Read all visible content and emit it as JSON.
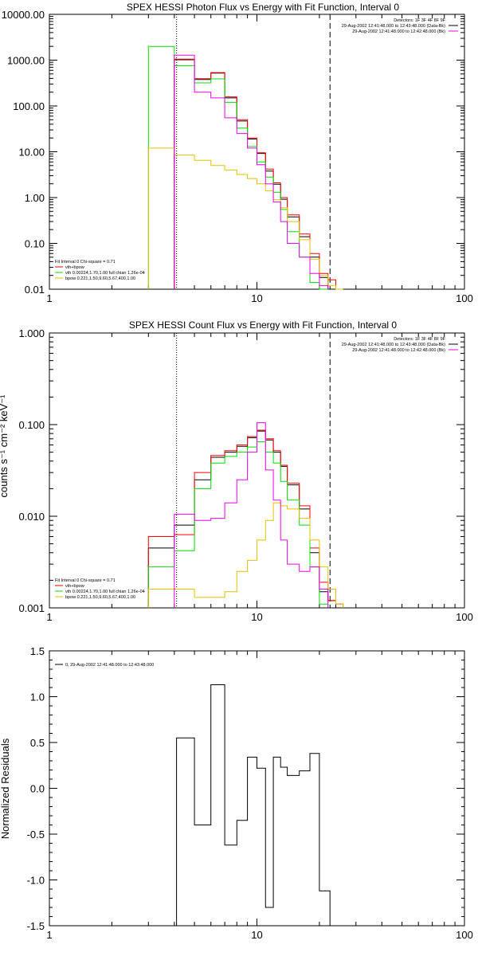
{
  "chart_data": [
    {
      "type": "line",
      "title": "SPEX HESSI Photon Flux vs Energy with Fit Function, Interval 0",
      "xlabel": "",
      "ylabel": "",
      "xscale": "log",
      "yscale": "log",
      "xlim": [
        1,
        100
      ],
      "ylim": [
        0.01,
        10000
      ],
      "x_ticks": [
        {
          "v": 1,
          "label": "1"
        },
        {
          "v": 10,
          "label": "10"
        },
        {
          "v": 100,
          "label": "100"
        }
      ],
      "y_ticks": [
        {
          "v": 0.01,
          "label": "0.01"
        },
        {
          "v": 0.1,
          "label": "0.10"
        },
        {
          "v": 1,
          "label": "1.00"
        },
        {
          "v": 10,
          "label": "10.00"
        },
        {
          "v": 100,
          "label": "100.00"
        },
        {
          "v": 1000,
          "label": "1000.00"
        },
        {
          "v": 10000,
          "label": "10000.00"
        }
      ],
      "vlines": [
        {
          "x": 4.1,
          "style": "dotted"
        },
        {
          "x": 22.5,
          "style": "dashed"
        }
      ],
      "info_lines": [
        "Detectors: 1F 3F 4F 8F 9F",
        "29-Aug-2002 12:41:48.000 to 12:43:48.000 (Data-Bk)",
        "29-Aug-2002 12:41:48.000 to 12:42:48.000 (Bk)"
      ],
      "legend_lines": [
        "Fit Interval  0    Chi-square = 0.71",
        "vth+bpow",
        "vth 0.00224,1.70,1.00  full chian 1.26e-04",
        "bpow 0.221,1.50,9.60,5.67,400,1.00"
      ],
      "edges": [
        3,
        4,
        5,
        6,
        7,
        8,
        9,
        10,
        11,
        12,
        13,
        14,
        16,
        18,
        20,
        22,
        24,
        26
      ],
      "series": [
        {
          "name": "",
          "color": "#000000",
          "edge_start": 1,
          "values": [
            1020,
            380,
            520,
            150,
            47,
            19,
            9.2,
            3.8,
            1.95,
            0.92,
            0.38,
            0.14,
            0.05,
            0.018,
            0.009
          ]
        },
        {
          "name": "vth+bpow",
          "color": "#ff0000",
          "edge_start": 1,
          "values": [
            1050,
            395,
            535,
            158,
            50,
            20,
            9.5,
            4.2,
            2.1,
            1.0,
            0.42,
            0.16,
            0.06,
            0.022,
            0.016
          ]
        },
        {
          "name": "vth 0.00224,1.70,1.00  full chian 1.26e-04",
          "color": "#00dd00",
          "edge_start": 0,
          "values": [
            2000,
            760,
            320,
            390,
            120,
            33,
            13,
            6,
            2.8,
            1.3,
            0.55,
            0.18,
            0.05,
            0.014,
            0.01
          ]
        },
        {
          "name": "bpow 0.221,1.50,9.60,5.67,400,1.00",
          "color": "#e6c000",
          "edge_start": 0,
          "values": [
            12,
            8.5,
            6.5,
            5,
            4,
            3.2,
            2.6,
            2.0,
            1.4,
            0.9,
            0.6,
            0.3,
            0.12,
            0.045,
            0.02,
            0.012,
            0.01
          ]
        },
        {
          "name": "",
          "color": "#ee00ee",
          "edge_start": 1,
          "values": [
            1280,
            200,
            150,
            55,
            25,
            12,
            5.2,
            2.0,
            0.8,
            0.3,
            0.1,
            0.05,
            0.022,
            0.012
          ]
        }
      ]
    },
    {
      "type": "line",
      "title": "SPEX HESSI Count Flux vs Energy with Fit Function, Interval 0",
      "xlabel": "",
      "ylabel": "counts s⁻¹ cm⁻² keV⁻¹",
      "xscale": "log",
      "yscale": "log",
      "xlim": [
        1,
        100
      ],
      "ylim": [
        0.001,
        1
      ],
      "x_ticks": [
        {
          "v": 1,
          "label": "1"
        },
        {
          "v": 10,
          "label": "10"
        },
        {
          "v": 100,
          "label": "100"
        }
      ],
      "y_ticks": [
        {
          "v": 0.001,
          "label": "0.001"
        },
        {
          "v": 0.01,
          "label": "0.010"
        },
        {
          "v": 0.1,
          "label": "0.100"
        },
        {
          "v": 1,
          "label": "1.000"
        }
      ],
      "vlines": [
        {
          "x": 4.1,
          "style": "dotted"
        },
        {
          "x": 22.5,
          "style": "dashed"
        }
      ],
      "info_lines": [
        "Detectors: 1F 3F 4F 8F 9F",
        "29-Aug-2002 12:41:48.000 to 12:43:48.000 (Data-Bk)",
        "29-Aug-2002 12:41:48.000 to 12:42:48.000 (Bk)"
      ],
      "legend_lines": [
        "Fit Interval  0    Chi-square = 0.71",
        "vth+bpow",
        "vth 0.00224,1.70,1.00  full chian 1.26e-04",
        "bpow 0.221,1.50,9.60,5.67,400,1.00"
      ],
      "edges": [
        3,
        4,
        5,
        6,
        7,
        8,
        9,
        10,
        11,
        12,
        13,
        14,
        16,
        18,
        20,
        22,
        24,
        26
      ],
      "series": [
        {
          "name": "",
          "color": "#000000",
          "edge_start": 0,
          "values": [
            0.0045,
            0.008,
            0.025,
            0.044,
            0.05,
            0.058,
            0.072,
            0.085,
            0.068,
            0.05,
            0.035,
            0.022,
            0.012,
            0.004,
            0.0015,
            0.0012
          ]
        },
        {
          "name": "vth+bpow",
          "color": "#ff0000",
          "edge_start": 0,
          "values": [
            0.006,
            0.0063,
            0.03,
            0.046,
            0.052,
            0.06,
            0.074,
            0.087,
            0.07,
            0.052,
            0.036,
            0.023,
            0.013,
            0.0045,
            0.0019,
            0.0012,
            0.0011
          ]
        },
        {
          "name": "vth 0.00224,1.70,1.00  full chian 1.26e-04",
          "color": "#00dd00",
          "edge_start": 0,
          "values": [
            0.0028,
            0.0042,
            0.02,
            0.038,
            0.045,
            0.05,
            0.057,
            0.065,
            0.05,
            0.038,
            0.024,
            0.015,
            0.008,
            0.0028,
            0.0011
          ]
        },
        {
          "name": "bpow 0.221,1.50,9.60,5.67,400,1.00",
          "color": "#e6c000",
          "edge_start": 0,
          "values": [
            0.0016,
            0.0016,
            0.0013,
            0.0013,
            0.0015,
            0.0025,
            0.0033,
            0.0055,
            0.009,
            0.014,
            0.013,
            0.012,
            0.0095,
            0.0055,
            0.0028,
            0.0016,
            0.0011
          ]
        },
        {
          "name": "",
          "color": "#ee00ee",
          "edge_start": 1,
          "values": [
            0.0105,
            0.009,
            0.0095,
            0.014,
            0.025,
            0.05,
            0.105,
            0.032,
            0.015,
            0.0055,
            0.003,
            0.0025,
            0.0028,
            0.0016
          ]
        }
      ]
    },
    {
      "type": "line",
      "title": "",
      "xlabel": "",
      "ylabel": "Normalized Residuals",
      "xscale": "log",
      "yscale": "linear",
      "xlim": [
        1,
        100
      ],
      "ylim": [
        -1.5,
        1.5
      ],
      "x_ticks": [
        {
          "v": 1,
          "label": "1"
        },
        {
          "v": 10,
          "label": "10"
        },
        {
          "v": 100,
          "label": "100"
        }
      ],
      "y_ticks": [
        {
          "v": -1.5,
          "label": "-1.5"
        },
        {
          "v": -1.0,
          "label": "-1.0"
        },
        {
          "v": -0.5,
          "label": "-0.5"
        },
        {
          "v": 0.0,
          "label": "0.0"
        },
        {
          "v": 0.5,
          "label": "0.5"
        },
        {
          "v": 1.0,
          "label": "1.0"
        },
        {
          "v": 1.5,
          "label": "1.5"
        }
      ],
      "vlines": [],
      "info_lines": [],
      "legend_lines": [
        "0, 29-Aug-2002 12:41:48.000 to 12:43:48.000"
      ],
      "edges": [
        4.1,
        5,
        6,
        7,
        8,
        9,
        10,
        11,
        12,
        13,
        14,
        16,
        18,
        20,
        22.5
      ],
      "series": [
        {
          "name": "0, 29-Aug-2002 12:41:48.000 to 12:43:48.000",
          "color": "#000000",
          "edge_start": 0,
          "drop_ends_to": -1.5,
          "values": [
            0.55,
            -0.4,
            1.13,
            -0.62,
            -0.35,
            0.34,
            0.22,
            -1.3,
            0.34,
            0.23,
            0.14,
            0.19,
            0.38,
            -1.12
          ]
        }
      ]
    }
  ]
}
